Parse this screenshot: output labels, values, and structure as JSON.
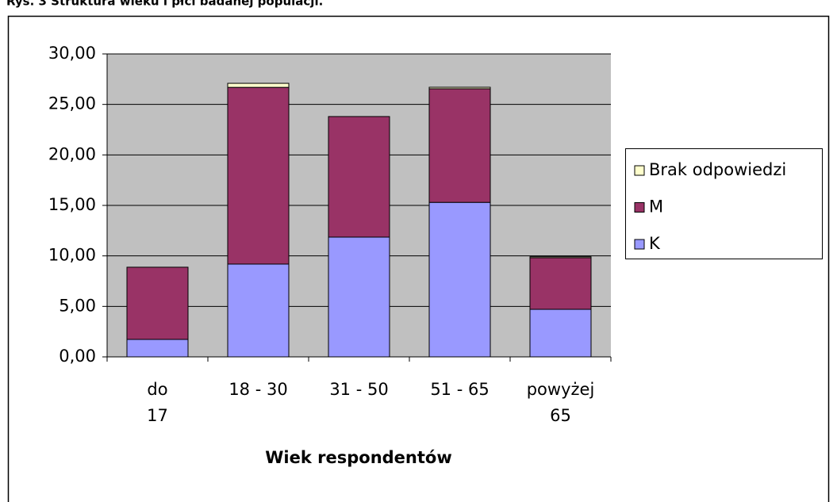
{
  "chart_data": {
    "type": "bar",
    "stacked": true,
    "title": "Rys. 3 Struktura wieku i płci badanej populacji.",
    "x_label": "Wiek respondentów",
    "categories": [
      "do 17",
      "18 - 30",
      "31 - 50",
      "51 - 65",
      "powyżej 65"
    ],
    "series": [
      {
        "name": "K",
        "color": "#9999ff",
        "values": [
          1.73,
          9.19,
          11.86,
          15.3,
          4.71
        ]
      },
      {
        "name": "M",
        "color": "#993366",
        "values": [
          7.15,
          17.5,
          11.94,
          11.25,
          5.11
        ]
      },
      {
        "name": "Brak odpowiedzi",
        "color": "#ffffcc",
        "values": [
          0,
          0.4,
          0,
          0.15,
          0.1
        ]
      }
    ],
    "ylim": [
      0,
      30
    ],
    "yticks": [
      {
        "value": 0,
        "label": "0,00"
      },
      {
        "value": 5,
        "label": "5,00"
      },
      {
        "value": 10,
        "label": "10,00"
      },
      {
        "value": 15,
        "label": "15,00"
      },
      {
        "value": 20,
        "label": "20,00"
      },
      {
        "value": 25,
        "label": "25,00"
      },
      {
        "value": 30,
        "label": "30,00"
      }
    ],
    "grid": true,
    "legend": "right"
  }
}
